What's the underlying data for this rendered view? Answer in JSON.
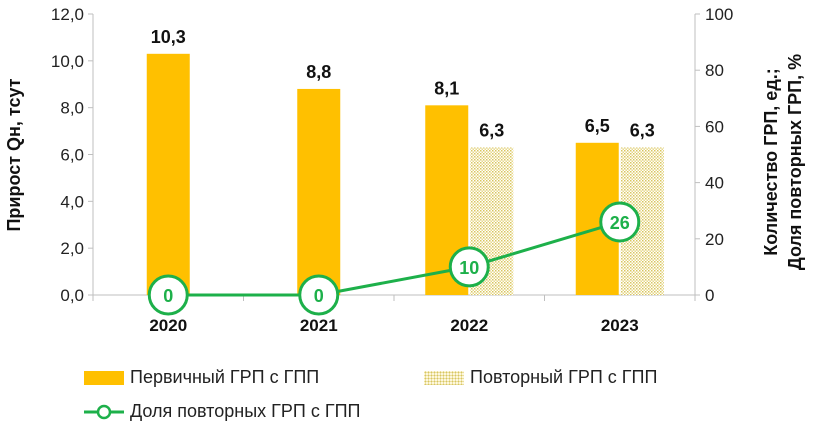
{
  "chart_data": {
    "type": "bar",
    "categories": [
      "2020",
      "2021",
      "2022",
      "2023"
    ],
    "series": [
      {
        "name": "Первичный ГРП с ГПП",
        "type": "bar",
        "axis": "left",
        "values": [
          10.3,
          8.8,
          8.1,
          6.5
        ],
        "labels": [
          "10,3",
          "8,8",
          "8,1",
          "6,5"
        ]
      },
      {
        "name": "Повторный ГРП с ГПП",
        "type": "bar",
        "axis": "left",
        "values": [
          null,
          null,
          6.3,
          6.3
        ],
        "labels": [
          "",
          "",
          "6,3",
          "6,3"
        ]
      },
      {
        "name": "Доля повторных ГРП с ГПП",
        "type": "line",
        "axis": "right",
        "values": [
          0,
          0,
          10,
          26
        ],
        "labels": [
          "0",
          "0",
          "10",
          "26"
        ]
      }
    ],
    "ylabel": "Прирост Qн, тсут",
    "ylabel_right_lines": [
      "Количество ГРП, ед.;",
      "Доля повторных ГРП, %"
    ],
    "ylim": [
      0,
      12
    ],
    "y_ticks": [
      "0,0",
      "2,0",
      "4,0",
      "6,0",
      "8,0",
      "10,0",
      "12,0"
    ],
    "y2lim": [
      0,
      100
    ],
    "y2_ticks": [
      "0",
      "20",
      "40",
      "60",
      "80",
      "100"
    ],
    "grid": false,
    "legend_position": "bottom",
    "colors": {
      "primary_bar": "#FFC000",
      "repeat_bar": "#E8D98A",
      "line": "#1DB04A"
    }
  }
}
